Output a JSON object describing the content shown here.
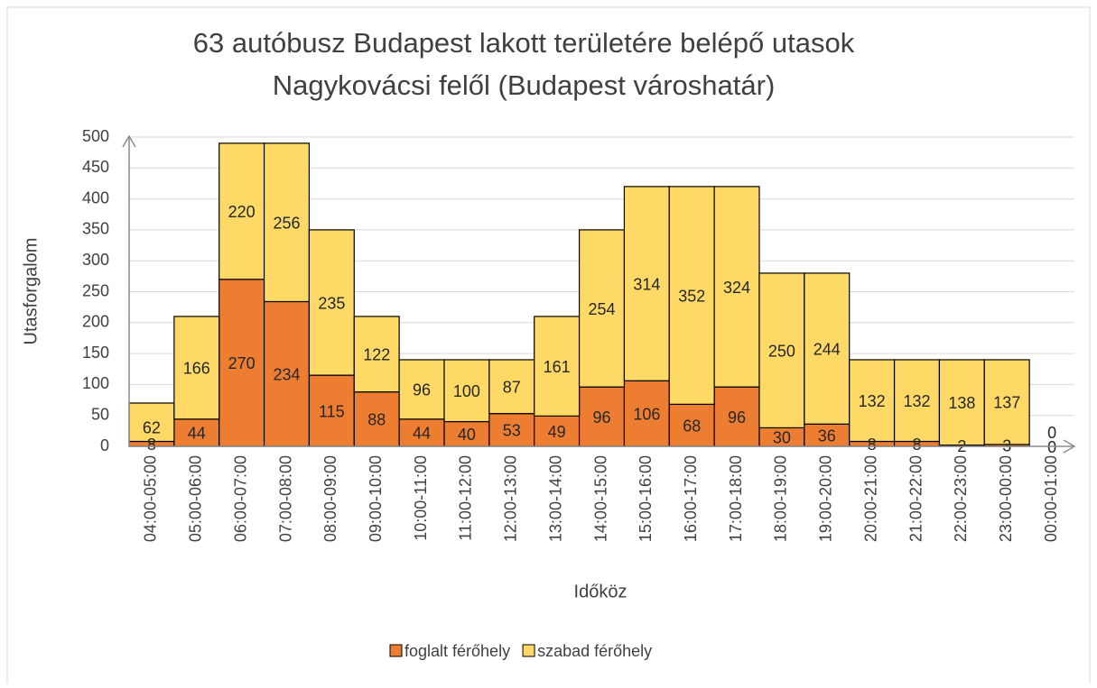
{
  "chart_data": {
    "type": "stacked_bar",
    "title": [
      "63 autóbusz Budapest lakott területére belépő utasok",
      "Nagykovácsi felől (Budapest városhatár)"
    ],
    "x_label": "Időköz",
    "y_label": "Utasforgalom",
    "categories": [
      "04:00-05:00",
      "05:00-06:00",
      "06:00-07:00",
      "07:00-08:00",
      "08:00-09:00",
      "09:00-10:00",
      "10:00-11:00",
      "11:00-12:00",
      "12:00-13:00",
      "13:00-14:00",
      "14:00-15:00",
      "15:00-16:00",
      "16:00-17:00",
      "17:00-18:00",
      "18:00-19:00",
      "19:00-20:00",
      "20:00-21:00",
      "21:00-22:00",
      "22:00-23:00",
      "23:00-00:00",
      "00:00-01:00"
    ],
    "series": [
      {
        "name": "foglalt férőhely",
        "color": "#ed7d31",
        "values": [
          8,
          44,
          270,
          234,
          115,
          88,
          44,
          40,
          53,
          49,
          96,
          106,
          68,
          96,
          30,
          36,
          8,
          8,
          2,
          3,
          0
        ]
      },
      {
        "name": "szabad férőhely",
        "color": "#ffd966",
        "values": [
          62,
          166,
          220,
          256,
          235,
          122,
          96,
          100,
          87,
          161,
          254,
          314,
          352,
          324,
          250,
          244,
          132,
          132,
          138,
          137,
          0
        ]
      }
    ],
    "ylim": [
      0,
      500
    ],
    "yticks": [
      0,
      50,
      100,
      150,
      200,
      250,
      300,
      350,
      400,
      450,
      500
    ],
    "grid": true,
    "legend": "bottom"
  }
}
